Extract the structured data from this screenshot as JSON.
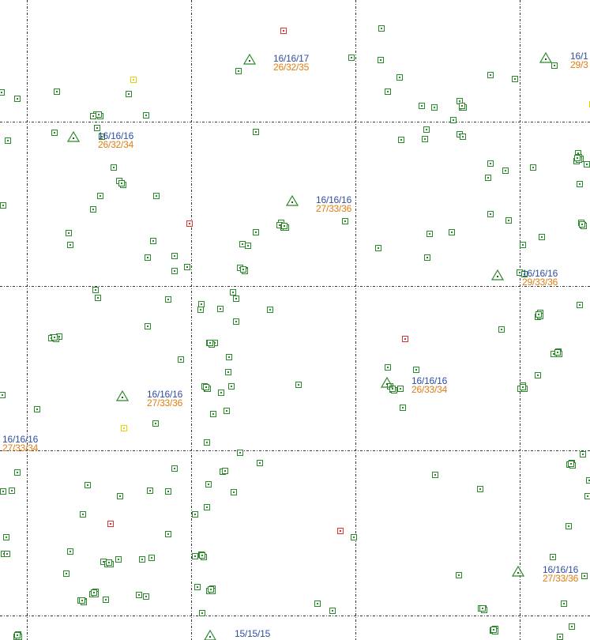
{
  "colors": {
    "background": "#ffffff",
    "grid": "#333333",
    "marker_green": "#2a8a2a",
    "marker_red": "#e23030",
    "marker_yellow": "#e6d200",
    "label_top": "#2d4fa0",
    "label_bottom": "#e07d12"
  },
  "grid": {
    "style": "dash-dot"
  },
  "icons": {
    "station": "triangle-with-dot-icon",
    "site": "square-with-dot-icon"
  },
  "stations": [
    {
      "id": "s1",
      "top": "16/16/17",
      "bottom": "26/32/35"
    },
    {
      "id": "s2",
      "top": "16/1",
      "bottom": "29/3"
    },
    {
      "id": "s3",
      "top": "16/16/16",
      "bottom": "26/32/34"
    },
    {
      "id": "s4",
      "top": "16/16/16",
      "bottom": "27/33/36"
    },
    {
      "id": "s5",
      "top": "16/16/16",
      "bottom": "29/33/36"
    },
    {
      "id": "s6",
      "top": "16/16/16",
      "bottom": "26/33/34"
    },
    {
      "id": "s7",
      "top": "16/16/16",
      "bottom": "27/33/36"
    },
    {
      "id": "s8",
      "top": "16/16/16",
      "bottom": "27/33/34"
    },
    {
      "id": "s9",
      "top": "16/16/16",
      "bottom": "27/33/36"
    },
    {
      "id": "s10",
      "top": "15/15/15",
      "bottom": ""
    }
  ]
}
